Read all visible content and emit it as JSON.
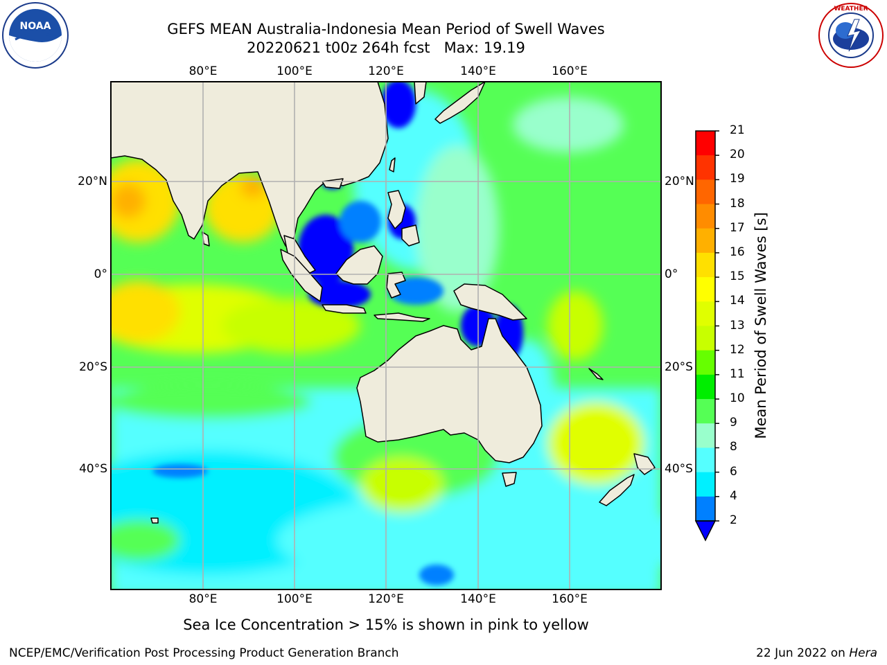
{
  "title": {
    "line1": "GEFS MEAN Australia-Indonesia Mean Period of Swell Waves",
    "line2": "20220621 t00z 264h fcst   Max: 19.19"
  },
  "map": {
    "lon_ticks": [
      "80°E",
      "100°E",
      "120°E",
      "140°E",
      "160°E"
    ],
    "lat_ticks": [
      "20°N",
      "0°",
      "20°S",
      "40°S"
    ],
    "lon_range": [
      60,
      180
    ],
    "lat_range": [
      -68,
      42
    ]
  },
  "colorbar": {
    "title": "Mean Period of Swell Waves [s]",
    "levels": [
      "21",
      "20",
      "19",
      "18",
      "17",
      "16",
      "15",
      "14",
      "13",
      "12",
      "11",
      "10",
      "9",
      "8",
      "6",
      "4",
      "2"
    ],
    "colors": [
      "#ff0000",
      "#ff3300",
      "#ff6600",
      "#ff8c00",
      "#ffb000",
      "#ffe000",
      "#ffff00",
      "#e0ff00",
      "#c8ff00",
      "#66ff00",
      "#00ee00",
      "#55ff55",
      "#99ffcc",
      "#55ffff",
      "#00f0ff",
      "#0080ff",
      "#0000ff"
    ]
  },
  "colors": {
    "land": "#efecdc",
    "grid": "#b0b0b0"
  },
  "logos": {
    "noaa": {
      "text": "NOAA",
      "icon": "noaa-logo"
    },
    "nws": {
      "text": "NATIONAL WEATHER SERVICE",
      "icon": "nws-logo"
    }
  },
  "footer": {
    "note": "Sea Ice Concentration > 15% is shown in pink to yellow",
    "left": "NCEP/EMC/Verification Post Processing Product Generation Branch",
    "right_date": "22 Jun 2022 on ",
    "right_machine": "Hera"
  }
}
